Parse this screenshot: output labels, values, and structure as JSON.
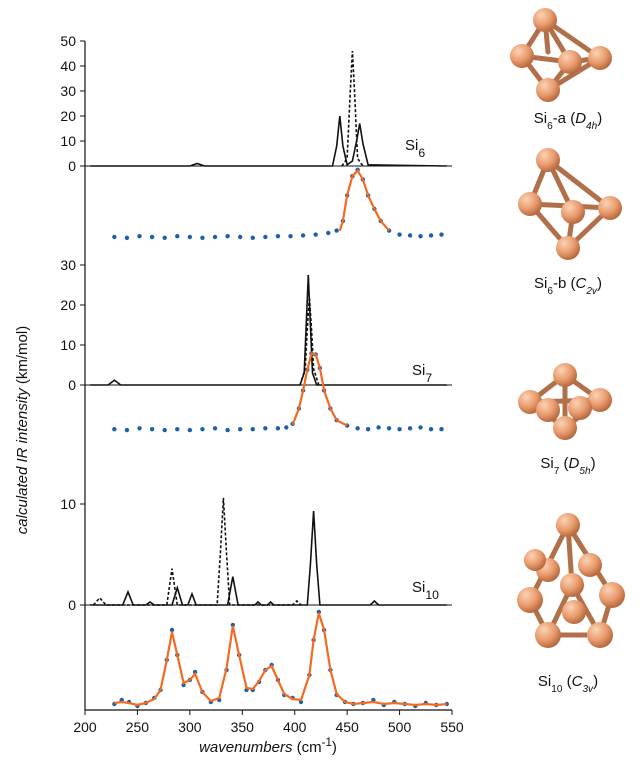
{
  "chart_data": {
    "type": "line",
    "xlim": [
      200,
      550
    ],
    "xticks": [
      200,
      250,
      300,
      350,
      400,
      450,
      500,
      550
    ],
    "xlabel": [
      {
        "text": "wavenumbers",
        "style": "italic"
      },
      {
        "text": " (cm"
      },
      {
        "text": "-1",
        "style": "sup"
      },
      {
        "text": ")"
      }
    ],
    "ylabel": [
      {
        "text": "calculated IR intensity",
        "style": "italic"
      },
      {
        "text": " (km/mol)"
      }
    ],
    "panels": [
      {
        "label": [
          {
            "text": "Si"
          },
          {
            "text": "6",
            "style": "sub"
          }
        ],
        "ylim": [
          0,
          50
        ],
        "yticks": [
          0,
          10,
          20,
          30,
          40,
          50
        ],
        "series": [
          {
            "style": "solid",
            "color": "#111111",
            "x": [
              205,
              300,
              307,
              314,
              436,
              440,
              443,
              446,
              450,
              455,
              459,
              462,
              465,
              470,
              545
            ],
            "values": [
              0,
              0,
              1,
              0,
              0,
              8,
              20,
              8,
              0.5,
              2,
              10,
              17,
              9,
              0.5,
              0
            ]
          },
          {
            "style": "dashed",
            "color": "#111111",
            "x": [
              445,
              450,
              453,
              455,
              457,
              460,
              465
            ],
            "values": [
              0,
              3,
              30,
              46,
              30,
              3,
              0
            ]
          }
        ]
      },
      {
        "ylim": [
          0,
          100
        ],
        "series": [
          {
            "style": "dots",
            "color": "#1f5fa6",
            "x": [
              228,
              240,
              252,
              264,
              276,
              288,
              300,
              312,
              324,
              336,
              348,
              360,
              372,
              384,
              396,
              408,
              420,
              432,
              440,
              446,
              450,
              455,
              460,
              465,
              470,
              476,
              482,
              490,
              500,
              510,
              520,
              530,
              540
            ],
            "values": [
              10,
              9,
              11,
              10,
              9,
              11,
              10,
              9,
              10,
              11,
              10,
              9,
              10,
              11,
              11,
              12,
              13,
              15,
              18,
              30,
              62,
              86,
              94,
              82,
              62,
              45,
              30,
              18,
              13,
              12,
              11,
              12,
              13
            ]
          },
          {
            "style": "solid",
            "color": "#f26b21",
            "x": [
              443,
              446,
              450,
              455,
              460,
              465,
              470,
              476,
              482,
              490
            ],
            "values": [
              18,
              30,
              62,
              86,
              93,
              82,
              62,
              45,
              30,
              18
            ]
          }
        ]
      },
      {
        "label": [
          {
            "text": "Si"
          },
          {
            "text": "7",
            "style": "sub"
          }
        ],
        "ylim": [
          0,
          30
        ],
        "yticks": [
          0,
          10,
          20,
          30
        ],
        "series": [
          {
            "style": "solid",
            "color": "#111111",
            "x": [
              205,
              222,
              228,
              234,
              405,
              409,
              411,
              413,
              415,
              417,
              421,
              545
            ],
            "values": [
              0,
              0,
              1.2,
              0,
              0,
              3,
              15,
              27.5,
              15,
              3,
              0,
              0
            ]
          },
          {
            "style": "dashed",
            "color": "#111111",
            "x": [
              405,
              410,
              412,
              414,
              416,
              418,
              423
            ],
            "values": [
              0,
              4,
              14,
              22,
              14,
              4,
              0
            ]
          }
        ]
      },
      {
        "ylim": [
          0,
          100
        ],
        "series": [
          {
            "style": "dots",
            "color": "#1f5fa6",
            "x": [
              228,
              240,
              252,
              264,
              276,
              288,
              300,
              312,
              324,
              336,
              348,
              360,
              372,
              384,
              392,
              398,
              404,
              408,
              412,
              416,
              420,
              424,
              428,
              434,
              440,
              450,
              460,
              470,
              480,
              490,
              500,
              510,
              520,
              530,
              540
            ],
            "values": [
              12,
              11,
              13,
              12,
              11,
              12,
              11,
              12,
              13,
              11,
              12,
              12,
              13,
              13,
              14,
              18,
              35,
              55,
              78,
              96,
              95,
              80,
              55,
              35,
              22,
              16,
              13,
              12,
              14,
              13,
              12,
              13,
              14,
              12,
              12
            ]
          },
          {
            "style": "solid",
            "color": "#f26b21",
            "x": [
              398,
              404,
              408,
              412,
              416,
              420,
              424,
              428,
              434,
              440,
              450
            ],
            "values": [
              17,
              35,
              55,
              78,
              96,
              95,
              80,
              55,
              35,
              22,
              16
            ]
          }
        ]
      },
      {
        "label": [
          {
            "text": "Si"
          },
          {
            "text": "10",
            "style": "sub"
          }
        ],
        "ylim": [
          0,
          10
        ],
        "yticks": [
          0,
          10
        ],
        "series": [
          {
            "style": "solid",
            "color": "#111111",
            "x": [
              205,
              236,
              241,
              246,
              258,
              262,
              266,
              283,
              288,
              293,
              298,
              302,
              306,
              336,
              341,
              346,
              362,
              365,
              368,
              374,
              377,
              380,
              412,
              415,
              418,
              421,
              424,
              472,
              476,
              480,
              545
            ],
            "values": [
              0,
              0,
              1.3,
              0,
              0,
              0.3,
              0,
              0,
              1.7,
              0,
              0,
              1.1,
              0,
              0,
              2.8,
              0,
              0,
              0.3,
              0,
              0,
              0.3,
              0,
              0,
              4,
              9.3,
              4,
              0,
              0,
              0.4,
              0,
              0
            ]
          },
          {
            "style": "dashed",
            "color": "#111111",
            "x": [
              208,
              214,
              220,
              278,
              283,
              288,
              326,
              329,
              332,
              335,
              338,
              398,
              402,
              406
            ],
            "values": [
              0,
              0.7,
              0,
              0,
              3.6,
              0,
              0,
              5,
              10.6,
              5,
              0,
              0,
              0.4,
              0
            ]
          }
        ]
      },
      {
        "ylim": [
          0,
          100
        ],
        "series": [
          {
            "style": "dots",
            "color": "#1f5fa6",
            "x": [
              228,
              235,
              242,
              250,
              258,
              266,
              272,
              278,
              283,
              288,
              294,
              300,
              305,
              312,
              320,
              328,
              335,
              341,
              347,
              354,
              360,
              366,
              372,
              378,
              384,
              390,
              398,
              406,
              414,
              418,
              423,
              428,
              434,
              440,
              448,
              456,
              465,
              475,
              485,
              495,
              505,
              515,
              525,
              535,
              545
            ],
            "values": [
              6,
              10,
              8,
              4,
              7,
              12,
              20,
              50,
              80,
              55,
              25,
              30,
              38,
              18,
              8,
              10,
              40,
              85,
              55,
              20,
              20,
              28,
              40,
              45,
              30,
              15,
              12,
              8,
              35,
              70,
              98,
              80,
              40,
              15,
              8,
              6,
              7,
              10,
              5,
              8,
              6,
              4,
              7,
              5,
              6
            ]
          },
          {
            "style": "solid",
            "color": "#f26b21",
            "x": [
              228,
              235,
              242,
              250,
              258,
              266,
              272,
              278,
              283,
              288,
              294,
              300,
              305,
              312,
              320,
              328,
              335,
              341,
              347,
              354,
              360,
              366,
              372,
              378,
              384,
              390,
              398,
              406,
              414,
              418,
              423,
              428,
              434,
              440,
              448,
              456,
              465,
              475,
              485,
              495,
              505,
              515,
              525,
              535,
              545
            ],
            "values": [
              7,
              8,
              7,
              5,
              7,
              11,
              20,
              50,
              78,
              55,
              27,
              30,
              36,
              18,
              9,
              12,
              42,
              84,
              55,
              22,
              21,
              29,
              40,
              44,
              30,
              16,
              11,
              10,
              35,
              70,
              97,
              80,
              40,
              16,
              8,
              6,
              7,
              8,
              6,
              7,
              6,
              5,
              6,
              5,
              6
            ]
          }
        ]
      }
    ],
    "molecules": [
      [
        {
          "text": "Si"
        },
        {
          "text": "6",
          "style": "sub"
        },
        {
          "text": "-a  ("
        },
        {
          "text": "D",
          "style": "italic"
        },
        {
          "text": "4h",
          "style": "subitalic"
        },
        {
          "text": ")"
        }
      ],
      [
        {
          "text": "Si"
        },
        {
          "text": "6",
          "style": "sub"
        },
        {
          "text": "-b  ("
        },
        {
          "text": "C",
          "style": "italic"
        },
        {
          "text": "2v",
          "style": "subitalic"
        },
        {
          "text": ")"
        }
      ],
      [
        {
          "text": "Si"
        },
        {
          "text": "7",
          "style": "sub"
        },
        {
          "text": "  ("
        },
        {
          "text": "D",
          "style": "italic"
        },
        {
          "text": "5h",
          "style": "subitalic"
        },
        {
          "text": ")"
        }
      ],
      [
        {
          "text": "Si"
        },
        {
          "text": "10",
          "style": "sub"
        },
        {
          "text": "  ("
        },
        {
          "text": "C",
          "style": "italic"
        },
        {
          "text": "3v",
          "style": "subitalic"
        },
        {
          "text": ")"
        }
      ]
    ]
  }
}
